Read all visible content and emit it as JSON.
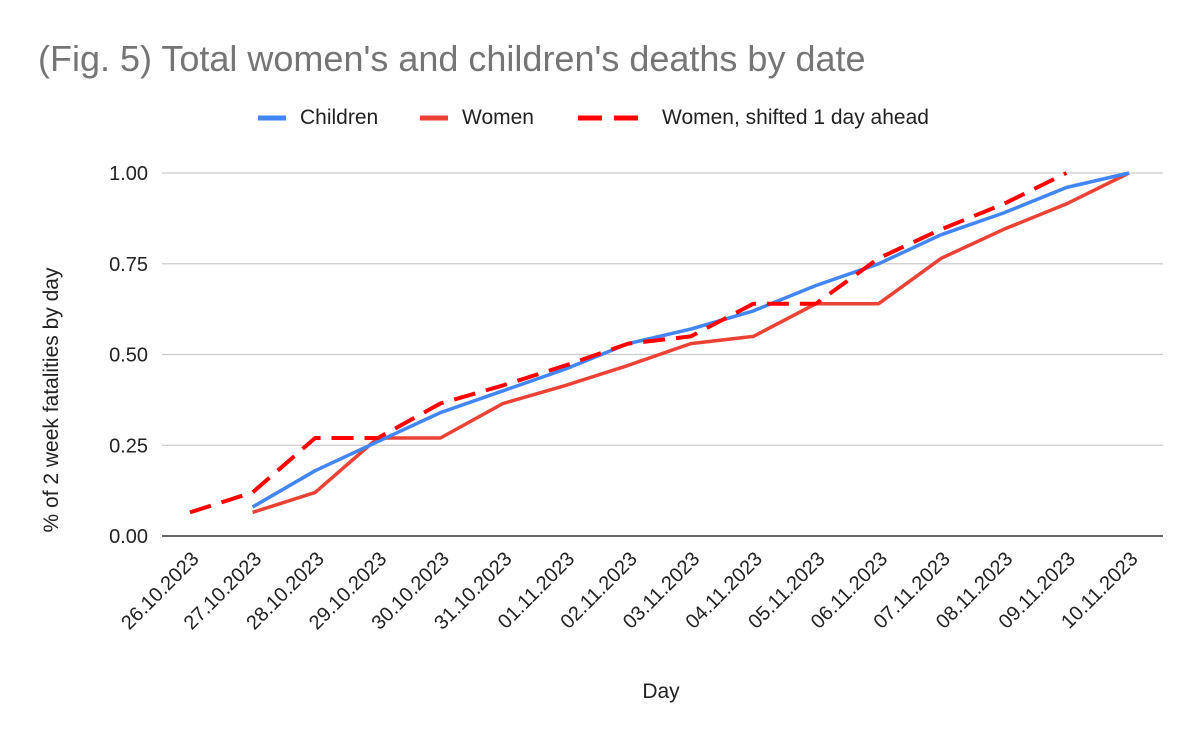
{
  "chart_data": {
    "type": "line",
    "title": "(Fig. 5) Total women's and children's deaths by date",
    "xlabel": "Day",
    "ylabel": "% of 2 week fatalities by day",
    "ylim": [
      0,
      1
    ],
    "yticks": [
      "0.00",
      "0.25",
      "0.50",
      "0.75",
      "1.00"
    ],
    "yticks_values": [
      0,
      0.25,
      0.5,
      0.75,
      1.0
    ],
    "grid": true,
    "legend_position": "top",
    "categories": [
      "26.10.2023",
      "27.10.2023",
      "28.10.2023",
      "29.10.2023",
      "30.10.2023",
      "31.10.2023",
      "01.11.2023",
      "02.11.2023",
      "03.11.2023",
      "04.11.2023",
      "05.11.2023",
      "06.11.2023",
      "07.11.2023",
      "08.11.2023",
      "09.11.2023",
      "10.11.2023"
    ],
    "series": [
      {
        "name": "Children",
        "color": "#4285f4",
        "style": "solid",
        "values": [
          null,
          0.08,
          0.18,
          0.26,
          0.34,
          0.4,
          0.46,
          0.53,
          0.57,
          0.62,
          0.69,
          0.75,
          0.83,
          0.89,
          0.96,
          1.0
        ]
      },
      {
        "name": "Women",
        "color": "#ea4335",
        "style": "solid",
        "values": [
          null,
          0.065,
          0.12,
          0.27,
          0.27,
          0.365,
          0.415,
          0.47,
          0.53,
          0.55,
          0.64,
          0.64,
          0.765,
          0.845,
          0.915,
          1.0
        ]
      },
      {
        "name": "Women, shifted 1 day ahead",
        "color": "#ff0000",
        "style": "dashed",
        "values": [
          0.065,
          0.12,
          0.27,
          0.27,
          0.365,
          0.415,
          0.47,
          0.53,
          0.55,
          0.64,
          0.64,
          0.765,
          0.845,
          0.915,
          1.0,
          null
        ]
      }
    ]
  }
}
